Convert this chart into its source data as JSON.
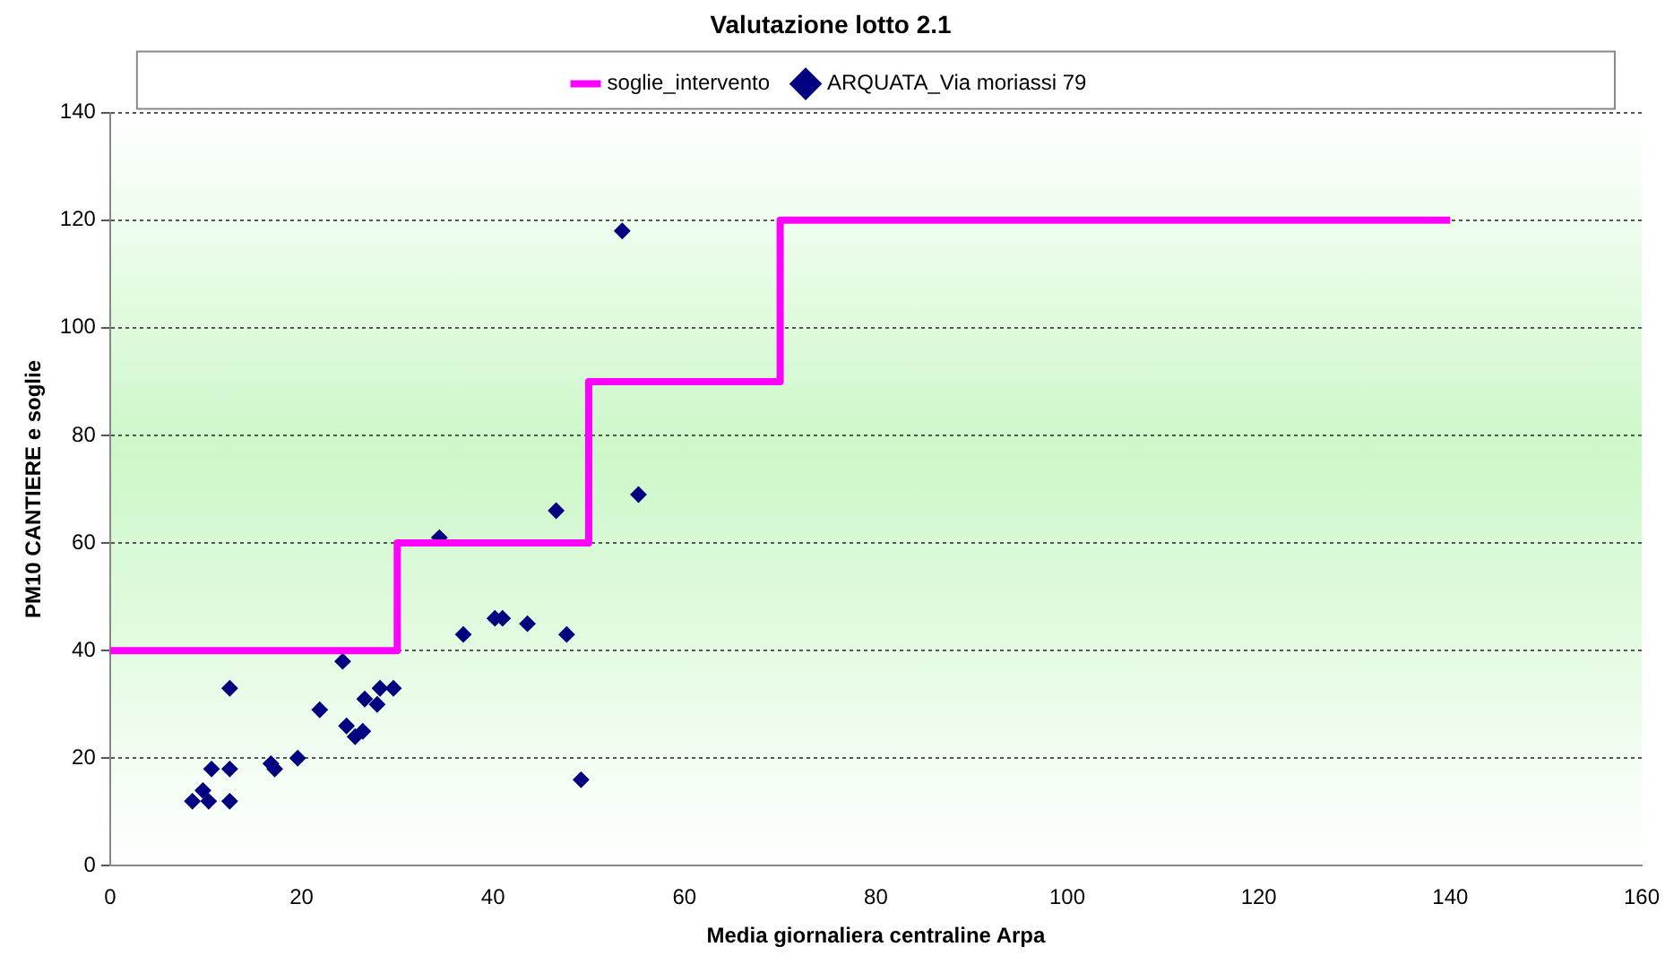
{
  "chart_data": {
    "type": "scatter",
    "title": "Valutazione lotto 2.1",
    "xlabel": "Media giornaliera centraline Arpa",
    "ylabel": "PM10 CANTIERE e soglie",
    "xlim": [
      0,
      160
    ],
    "xticks": [
      0,
      20,
      40,
      60,
      80,
      100,
      120,
      140,
      160
    ],
    "ylim": [
      0,
      140
    ],
    "yticks": [
      0,
      20,
      40,
      60,
      80,
      100,
      120,
      140
    ],
    "grid": "y",
    "legend": "top",
    "series": [
      {
        "name": "soglie_intervento",
        "type": "step",
        "marker": "none",
        "color": "#ff00ff",
        "x": [
          0,
          30,
          50,
          70,
          140
        ],
        "values": [
          40,
          60,
          90,
          120,
          120
        ]
      },
      {
        "name": "ARQUATA_Via moriassi 79",
        "type": "scatter",
        "marker": "diamond",
        "color": "#000080",
        "x": [
          8.6,
          9.7,
          10.3,
          10.6,
          12.5,
          12.5,
          12.5,
          16.8,
          17.2,
          19.6,
          21.9,
          24.3,
          24.7,
          25.6,
          26.4,
          26.6,
          27.9,
          28.2,
          29.6,
          34.4,
          36.9,
          40.2,
          41,
          43.6,
          46.6,
          47.7,
          49.2,
          53.5,
          55.2
        ],
        "values": [
          12,
          14,
          12,
          18,
          33,
          18,
          12,
          19,
          18,
          20,
          29,
          38,
          26,
          24,
          25,
          31,
          30,
          33,
          33,
          61,
          43,
          46,
          46,
          45,
          66,
          43,
          16,
          118,
          69
        ]
      }
    ]
  }
}
